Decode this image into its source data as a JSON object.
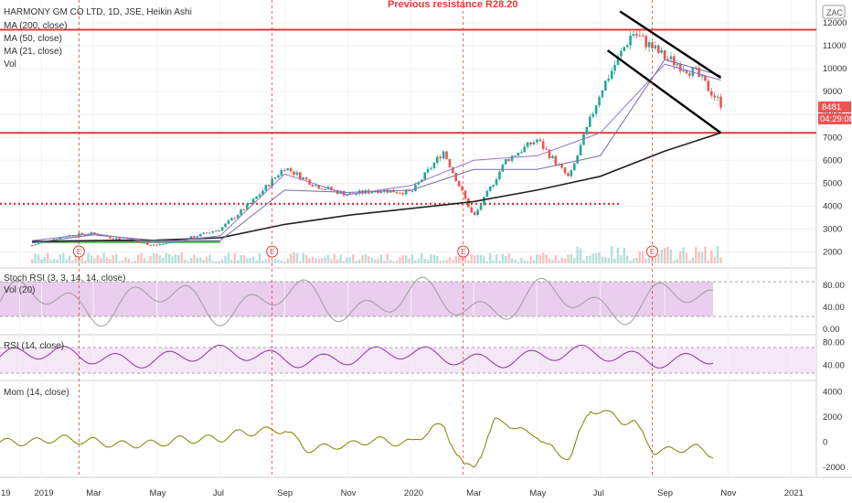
{
  "header": {
    "symbol_line": "HARMONY GM CO LTD, 1D, JSE, Heikin Ashi",
    "indicators": [
      "MA (200, close)",
      "MA (50, close)",
      "MA (21, close)",
      "Vol"
    ],
    "currency": "ZAC"
  },
  "annotation": "Previous resistance R28.20",
  "price_tag": {
    "value": "8481",
    "countdown": "04:29:08"
  },
  "earnings_label": "E",
  "panes": {
    "stoch": {
      "title": "Stoch RSI (3, 3, 14, 14, close)",
      "sub_title": "Vol (20)",
      "ticks": [
        "80.00",
        "40.00",
        "0.00"
      ]
    },
    "rsi": {
      "title": "RSI (14, close)",
      "ticks": [
        "80.00",
        "40.00"
      ]
    },
    "mom": {
      "title": "Mom (14, close)",
      "ticks": [
        "4000",
        "2000",
        "0",
        "-2000"
      ]
    }
  },
  "price_axis": {
    "ticks": [
      "12000",
      "11000",
      "10000",
      "9000",
      "8000",
      "7000",
      "6000",
      "5000",
      "4000",
      "3000",
      "2000"
    ]
  },
  "time_axis": {
    "labels": [
      "19",
      "2019",
      "Mar",
      "May",
      "Jul",
      "Sep",
      "Nov",
      "2020",
      "Mar",
      "May",
      "Jul",
      "Sep",
      "Nov",
      "2021"
    ]
  },
  "colors": {
    "up": "#26a69a",
    "down": "#ef5350",
    "ma200": "#222222",
    "ma50": "#7b6aa8",
    "ma21": "#9575cd",
    "level": "#e53935",
    "stoch": "#9e9e9e",
    "stoch_band": "#e1bee7",
    "rsi": "#9c27b0",
    "mom": "#808000",
    "support": "#4caf50"
  },
  "chart_data": {
    "type": "candlestick",
    "title": "HARMONY GM CO LTD, 1D, JSE, Heikin Ashi",
    "x_range": [
      "2018-12",
      "2021-01"
    ],
    "ylim": [
      1500,
      12800
    ],
    "price_levels": [
      11700,
      7200,
      4100
    ],
    "support_line": {
      "from": "2019-01",
      "to": "2019-07",
      "value": 2450
    },
    "channel": {
      "upper": [
        [
          "2020-07-20",
          12500
        ],
        [
          "2020-10-25",
          9600
        ]
      ],
      "lower": [
        [
          "2020-07-08",
          10800
        ],
        [
          "2020-10-25",
          7200
        ]
      ]
    },
    "series": [
      {
        "name": "MA (200, close)",
        "x": [
          "2019-01",
          "2019-03",
          "2019-05",
          "2019-07",
          "2019-09",
          "2019-11",
          "2020-01",
          "2020-03",
          "2020-05",
          "2020-07",
          "2020-09",
          "2020-10-25"
        ],
        "values": [
          2450,
          2500,
          2520,
          2620,
          3200,
          3600,
          3900,
          4200,
          4700,
          5300,
          6400,
          7200
        ]
      },
      {
        "name": "MA (50, close)",
        "x": [
          "2019-01",
          "2019-03",
          "2019-05",
          "2019-07",
          "2019-09",
          "2019-11",
          "2020-01",
          "2020-03",
          "2020-05",
          "2020-07",
          "2020-09",
          "2020-10-25"
        ],
        "values": [
          2400,
          2750,
          2500,
          2500,
          4700,
          4600,
          4700,
          5600,
          5600,
          6200,
          10400,
          9700
        ]
      },
      {
        "name": "MA (21, close)",
        "x": [
          "2019-01",
          "2019-03",
          "2019-05",
          "2019-07",
          "2019-09",
          "2019-11",
          "2020-01",
          "2020-03",
          "2020-05",
          "2020-07",
          "2020-09",
          "2020-10-25"
        ],
        "values": [
          2500,
          2800,
          2400,
          2700,
          5400,
          4500,
          4900,
          6000,
          6200,
          7200,
          10200,
          9500
        ]
      },
      {
        "name": "Close",
        "x": [
          "2019-01",
          "2019-02",
          "2019-03",
          "2019-04",
          "2019-05",
          "2019-06",
          "2019-07",
          "2019-08",
          "2019-09",
          "2019-10",
          "2019-11",
          "2019-12",
          "2020-01",
          "2020-02",
          "2020-03",
          "2020-04",
          "2020-05",
          "2020-06",
          "2020-07",
          "2020-08",
          "2020-09",
          "2020-10",
          "2020-10-25"
        ],
        "values": [
          2300,
          2700,
          2800,
          2500,
          2300,
          2600,
          3000,
          4200,
          5700,
          4900,
          4500,
          4700,
          4600,
          6400,
          3500,
          6000,
          6900,
          5200,
          9000,
          11600,
          10500,
          9800,
          8481
        ]
      }
    ]
  }
}
